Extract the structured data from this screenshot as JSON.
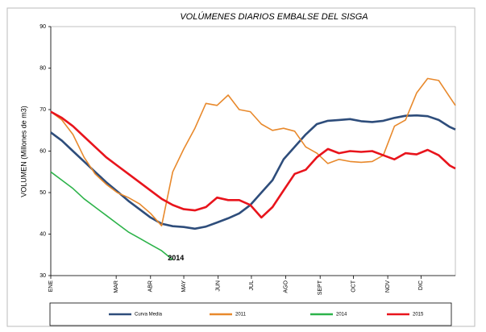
{
  "chart_data": {
    "type": "line",
    "title": "VOLÚMENES DIARIOS EMBALSE DEL SISGA",
    "y_label": "VOLUMEN  (Millones de m3)",
    "annotation": "2014",
    "x": [
      0,
      10,
      20,
      30,
      40,
      50,
      60,
      70,
      80,
      90,
      100,
      110,
      120,
      130,
      140,
      150,
      160,
      170,
      180,
      190,
      200,
      210,
      220,
      230,
      240,
      250,
      260,
      270,
      280,
      290,
      300,
      310,
      320,
      330,
      340,
      350,
      360,
      365
    ],
    "xlim": [
      0,
      365
    ],
    "xticks": [
      {
        "value": 0,
        "label": "ENE"
      },
      {
        "value": 59,
        "label": "MAR"
      },
      {
        "value": 90,
        "label": "ABR"
      },
      {
        "value": 120,
        "label": "MAY"
      },
      {
        "value": 151,
        "label": "JUN"
      },
      {
        "value": 181,
        "label": "JUL"
      },
      {
        "value": 212,
        "label": "AGO"
      },
      {
        "value": 243,
        "label": "SEPT"
      },
      {
        "value": 273,
        "label": "OCT"
      },
      {
        "value": 304,
        "label": "NOV"
      },
      {
        "value": 334,
        "label": "DIC"
      }
    ],
    "ylim": [
      30,
      90
    ],
    "yticks": [
      30,
      40,
      50,
      60,
      70,
      80,
      90
    ],
    "grid": false,
    "legend": "bottom",
    "series": [
      {
        "name": "Curva Media",
        "color": "#2e4d7b",
        "values": [
          64.5,
          62.5,
          60,
          57.5,
          55,
          52.5,
          50.3,
          48,
          46,
          44,
          42.5,
          41.9,
          41.7,
          41.3,
          41.8,
          42.8,
          43.8,
          45,
          47,
          50,
          53,
          58,
          61,
          64,
          66.5,
          67.3,
          67.5,
          67.7,
          67.2,
          67,
          67.3,
          68,
          68.5,
          68.6,
          68.4,
          67.5,
          65.8,
          65.2
        ]
      },
      {
        "name": "2011",
        "color": "#e8892c",
        "values": [
          69.5,
          67.5,
          64,
          58.5,
          54.5,
          52,
          50,
          48.8,
          47.3,
          45,
          42,
          55,
          60.5,
          65.5,
          71.5,
          71,
          73.5,
          70,
          69.5,
          66.5,
          65,
          65.5,
          64.8,
          61,
          59.5,
          57,
          58,
          57.5,
          57.3,
          57.5,
          59,
          66,
          67.5,
          74,
          77.5,
          77,
          73,
          71
        ]
      },
      {
        "name": "2014",
        "color": "#2db34a",
        "values": [
          55,
          53,
          51,
          48.5,
          46.5,
          44.5,
          42.5,
          40.5,
          39,
          37.5,
          36,
          33.8,
          null,
          null,
          null,
          null,
          null,
          null,
          null,
          null,
          null,
          null,
          null,
          null,
          null,
          null,
          null,
          null,
          null,
          null,
          null,
          null,
          null,
          null,
          null,
          null,
          null,
          null
        ]
      },
      {
        "name": "2015",
        "color": "#e8141c",
        "values": [
          69.5,
          68,
          66,
          63.5,
          61,
          58.5,
          56.5,
          54.5,
          52.5,
          50.5,
          48.5,
          47,
          46,
          45.7,
          46.5,
          48.8,
          48.2,
          48.2,
          47,
          44,
          46.5,
          50.5,
          54.5,
          55.5,
          58.5,
          60.5,
          59.5,
          60,
          59.8,
          60,
          59,
          58,
          59.5,
          59.2,
          60.3,
          59,
          56.5,
          55.8
        ]
      }
    ]
  }
}
